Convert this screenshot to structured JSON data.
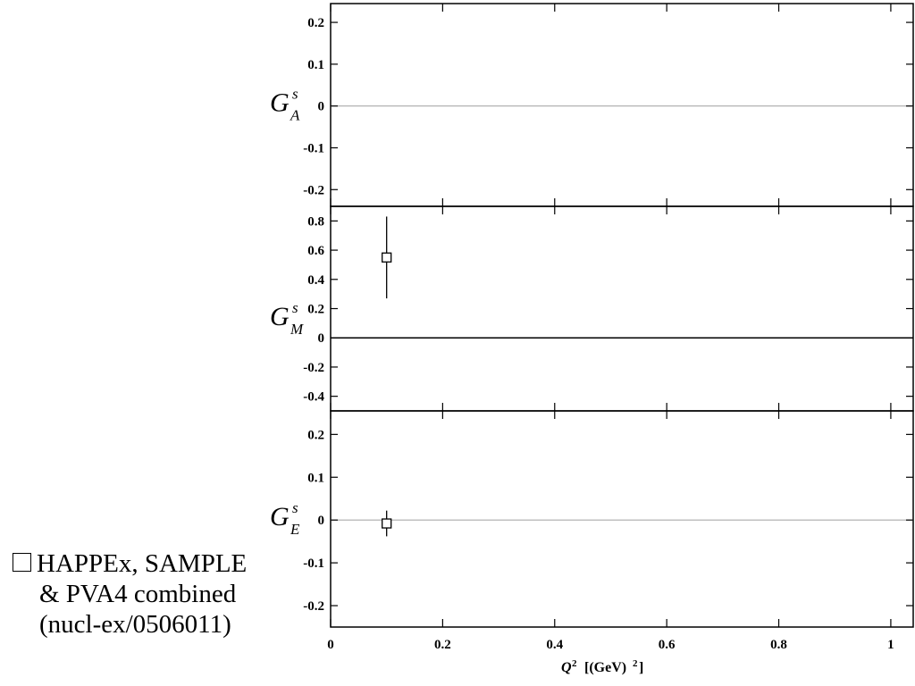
{
  "title": "",
  "xlabel": {
    "var": "Q",
    "sup": "2",
    "unit": "[(GeV)",
    "unit_sup": "2",
    "unit_close": "]"
  },
  "legend": {
    "marker": "open-square",
    "lines": [
      "HAPPEx, SAMPLE",
      "& PVA4  combined",
      "(nucl-ex/0506011)"
    ]
  },
  "chart_data": [
    {
      "type": "scatter",
      "ylabel": {
        "base": "G",
        "sup": "s",
        "sub": "A"
      },
      "xlim": [
        0,
        1.04
      ],
      "ylim": [
        -0.24,
        0.245
      ],
      "x_ticks": [
        0,
        0.2,
        0.4,
        0.6,
        0.8,
        1
      ],
      "y_ticks": [
        0.2,
        0.1,
        0,
        -0.1,
        -0.2
      ],
      "y_tick_labels": [
        "0.2",
        "0.1",
        "0",
        "-0.1",
        "-0.2"
      ],
      "zero_line_color": "#aaaaaa",
      "series": [
        {
          "points": []
        }
      ]
    },
    {
      "type": "scatter",
      "ylabel": {
        "base": "G",
        "sup": "s",
        "sub": "M"
      },
      "xlim": [
        0,
        1.04
      ],
      "ylim": [
        -0.5,
        0.9
      ],
      "x_ticks": [
        0,
        0.2,
        0.4,
        0.6,
        0.8,
        1
      ],
      "y_ticks": [
        0.8,
        0.6,
        0.4,
        0.2,
        0,
        -0.2,
        -0.4
      ],
      "y_tick_labels": [
        "0.8",
        "0.6",
        "0.4",
        "0.2",
        "0",
        "-0.2",
        "-0.4"
      ],
      "zero_line_color": "#000000",
      "series": [
        {
          "points": [
            {
              "x": 0.1,
              "y": 0.55,
              "err_lo": 0.28,
              "err_hi": 0.28
            }
          ]
        }
      ]
    },
    {
      "type": "scatter",
      "ylabel": {
        "base": "G",
        "sup": "s",
        "sub": "E"
      },
      "xlim": [
        0,
        1.04
      ],
      "ylim": [
        -0.25,
        0.255
      ],
      "x_ticks": [
        0,
        0.2,
        0.4,
        0.6,
        0.8,
        1
      ],
      "x_tick_labels": [
        "0",
        "0.2",
        "0.4",
        "0.6",
        "0.8",
        "1"
      ],
      "y_ticks": [
        0.2,
        0.1,
        0,
        -0.1,
        -0.2
      ],
      "y_tick_labels": [
        "0.2",
        "0.1",
        "0",
        "-0.1",
        "-0.2"
      ],
      "zero_line_color": "#aaaaaa",
      "series": [
        {
          "points": [
            {
              "x": 0.1,
              "y": -0.008,
              "err_lo": 0.03,
              "err_hi": 0.03
            }
          ]
        }
      ]
    }
  ]
}
